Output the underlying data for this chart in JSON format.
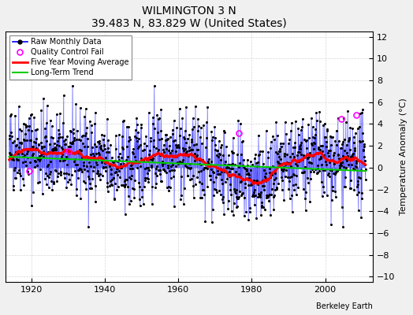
{
  "title": "WILMINGTON 3 N",
  "subtitle": "39.483 N, 83.829 W (United States)",
  "ylabel": "Temperature Anomaly (°C)",
  "credit": "Berkeley Earth",
  "xlim": [
    1913,
    2013
  ],
  "ylim": [
    -10.5,
    12.5
  ],
  "yticks": [
    -10,
    -8,
    -6,
    -4,
    -2,
    0,
    2,
    4,
    6,
    8,
    10,
    12
  ],
  "xticks": [
    1920,
    1940,
    1960,
    1980,
    2000
  ],
  "year_start": 1914,
  "year_end": 2011,
  "background_color": "#f0f0f0",
  "plot_bg_color": "#ffffff",
  "raw_line_color": "#0000ff",
  "raw_dot_color": "#000000",
  "qc_fail_color": "#ff00ff",
  "moving_avg_color": "#ff0000",
  "trend_color": "#00cc00",
  "seed": 42
}
